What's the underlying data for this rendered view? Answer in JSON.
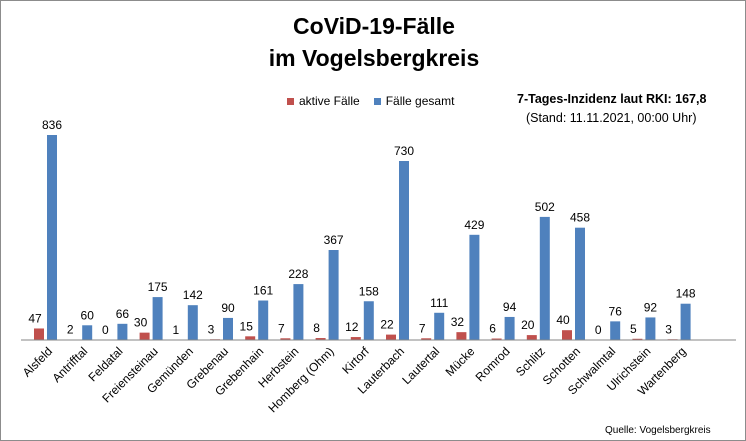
{
  "chart_data": {
    "type": "bar",
    "title": [
      "CoViD-19-Fälle",
      "im Vogelsbergkreis"
    ],
    "categories": [
      "Alsfeld",
      "Antrifftal",
      "Feldatal",
      "Freiensteinau",
      "Gemünden",
      "Grebenau",
      "Grebenhain",
      "Herbstein",
      "Homberg (Ohm)",
      "Kirtorf",
      "Lauterbach",
      "Lautertal",
      "Mücke",
      "Romrod",
      "Schlitz",
      "Schotten",
      "Schwalmtal",
      "Ulrichstein",
      "Wartenberg"
    ],
    "series": [
      {
        "name": "aktive Fälle",
        "color": "#c0504d",
        "values": [
          47,
          2,
          0,
          30,
          1,
          3,
          15,
          7,
          8,
          12,
          22,
          7,
          32,
          6,
          20,
          40,
          0,
          5,
          3
        ]
      },
      {
        "name": "Fälle gesamt",
        "color": "#4f81bd",
        "values": [
          836,
          60,
          66,
          175,
          142,
          90,
          161,
          228,
          367,
          158,
          730,
          111,
          429,
          94,
          502,
          458,
          76,
          92,
          148
        ]
      }
    ],
    "legend": "top",
    "grid": false,
    "annotation": {
      "incidence": "7-Tages-Inzidenz laut RKI: 167,8",
      "stand": "(Stand: 11.11.2021, 00:00 Uhr)"
    },
    "source": "Quelle: Vogelsbergkreis"
  }
}
